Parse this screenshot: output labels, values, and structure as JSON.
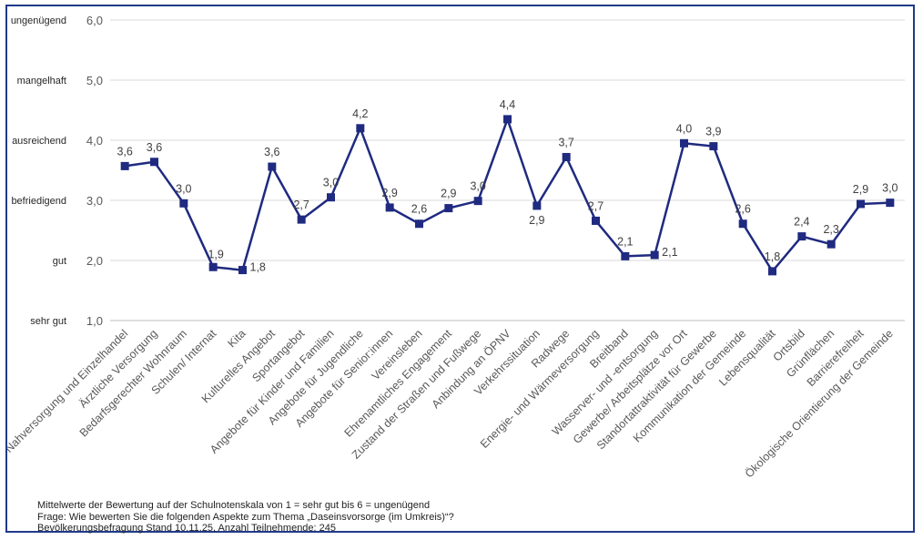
{
  "chart_data": {
    "type": "line",
    "categories": [
      "Nahversorgung und Einzelhandel",
      "Ärztliche Versorgung",
      "Bedarfsgerechter Wohnraum",
      "Schulen/ Internat",
      "Kita",
      "Kulturelles Angebot",
      "Sportangebot",
      "Angebote für Kinder und Familien",
      "Angebote für Jugendliche",
      "Angebote für Senior:innen",
      "Vereinsleben",
      "Ehrenamtliches Engagement",
      "Zustand der Straßen und Fußwege",
      "Anbindung an ÖPNV",
      "Verkehrssituation",
      "Radwege",
      "Energie- und Wärmeversorgung",
      "Breitband",
      "Wasserver- und -entsorgung",
      "Gewerbe/ Arbeitsplätze vor Ort",
      "Standortattraktivität für Gewerbe",
      "Kommunikation der Gemeinde",
      "Lebensqualität",
      "Ortsbild",
      "Grünflächen",
      "Barrierefreiheit",
      "Ökologische Orientierung der Gemeinde"
    ],
    "values": [
      3.6,
      3.6,
      3.0,
      1.9,
      1.8,
      3.6,
      2.7,
      3.0,
      4.2,
      2.9,
      2.6,
      2.9,
      3.0,
      4.4,
      2.9,
      3.7,
      2.7,
      2.1,
      2.1,
      4.0,
      3.9,
      2.6,
      1.8,
      2.4,
      2.3,
      2.9,
      3.0
    ],
    "point_positions": [
      3.57,
      3.64,
      2.95,
      1.89,
      1.84,
      3.56,
      2.68,
      3.05,
      4.2,
      2.88,
      2.61,
      2.87,
      2.99,
      4.35,
      2.91,
      3.72,
      2.66,
      2.07,
      2.09,
      3.95,
      3.9,
      2.61,
      1.82,
      2.4,
      2.27,
      2.94,
      2.96
    ],
    "data_labels": [
      "3,6",
      "3,6",
      "3,0",
      "1,9",
      "1,8",
      "3,6",
      "2,7",
      "3,0",
      "4,2",
      "2,9",
      "2,6",
      "2,9",
      "3,0",
      "4,4",
      "2,9",
      "3,7",
      "2,7",
      "2,1",
      "2,1",
      "4,0",
      "3,9",
      "2,6",
      "1,8",
      "2,4",
      "2,3",
      "2,9",
      "3,0"
    ],
    "ylim": [
      1,
      6
    ],
    "y_ticks": [
      1,
      2,
      3,
      4,
      5,
      6
    ],
    "y_tick_labels": [
      "1,0",
      "2,0",
      "3,0",
      "4,0",
      "5,0",
      "6,0"
    ],
    "y_grade_labels": [
      "sehr gut",
      "gut",
      "befriedigend",
      "ausreichend",
      "mangelhaft",
      "ungenügend"
    ],
    "grid": true,
    "legend": "none",
    "line_color": "#1f2a80"
  },
  "notes": {
    "line1": "Mittelwerte der Bewertung  auf der Schulnotenskala  von 1 = sehr gut bis 6 = ungenügend",
    "line2": "Frage: Wie bewerten Sie die folgenden Aspekte zum Thema „Daseinsvorsorge (im Umkreis)“?",
    "line3": "Bevölkerungsbefragung  Stand 10.11.25, Anzahl Teilnehmende:  245"
  }
}
